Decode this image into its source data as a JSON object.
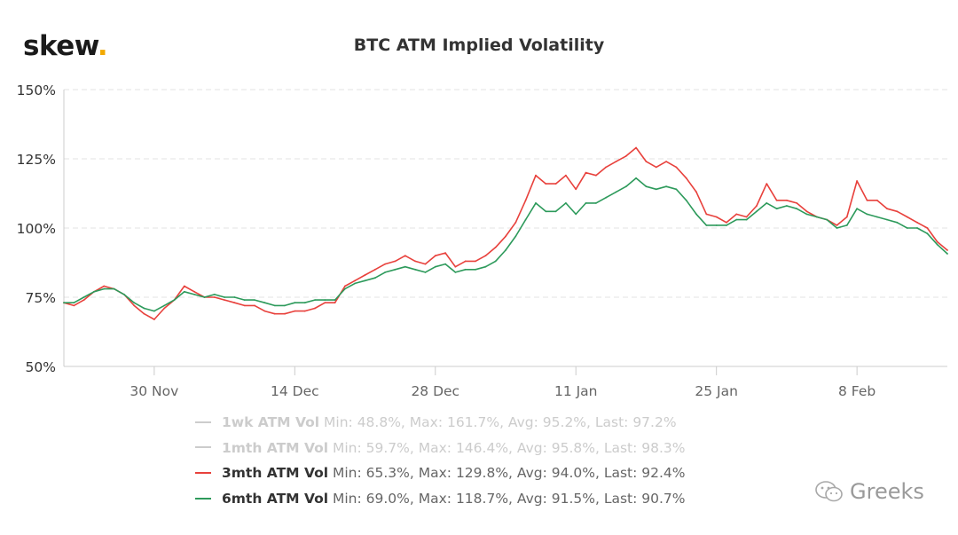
{
  "logo": {
    "text": "skew",
    "dot": "."
  },
  "watermark": {
    "text": "Greeks",
    "icon": "wechat-icon"
  },
  "chart_data": {
    "type": "line",
    "title": "BTC ATM Implied Volatility",
    "xlabel": "",
    "ylabel": "",
    "x_start": "2019-11-21",
    "x_end": "2020-02-17",
    "x_ticks": [
      "30 Nov",
      "14 Dec",
      "28 Dec",
      "11 Jan",
      "25 Jan",
      "8 Feb"
    ],
    "x_tick_dates": [
      "2019-11-30",
      "2019-12-14",
      "2019-12-28",
      "2020-01-11",
      "2020-01-25",
      "2020-02-08"
    ],
    "ylim": [
      50,
      150
    ],
    "y_ticks": [
      "50%",
      "75%",
      "100%",
      "125%",
      "150%"
    ],
    "y_tick_values": [
      50,
      75,
      100,
      125,
      150
    ],
    "grid": "horizontal dashed",
    "legend_position": "bottom",
    "series": [
      {
        "name": "1wk ATM Vol",
        "stats": "Min: 48.8%, Max: 161.7%, Avg: 95.2%, Last: 97.2%",
        "color": "#cccccc",
        "visible": false,
        "points": []
      },
      {
        "name": "1mth ATM Vol",
        "stats": "Min: 59.7%, Max: 146.4%, Avg: 95.8%, Last: 98.3%",
        "color": "#cccccc",
        "visible": false,
        "points": []
      },
      {
        "name": "3mth ATM Vol",
        "stats": "Min: 65.3%, Max: 129.8%, Avg: 94.0%, Last: 92.4%",
        "color": "#e8413c",
        "visible": true,
        "points": [
          [
            "2019-11-21",
            73
          ],
          [
            "2019-11-22",
            72
          ],
          [
            "2019-11-23",
            74
          ],
          [
            "2019-11-24",
            77
          ],
          [
            "2019-11-25",
            79
          ],
          [
            "2019-11-26",
            78
          ],
          [
            "2019-11-27",
            76
          ],
          [
            "2019-11-28",
            72
          ],
          [
            "2019-11-29",
            69
          ],
          [
            "2019-11-30",
            67
          ],
          [
            "2019-12-01",
            71
          ],
          [
            "2019-12-02",
            74
          ],
          [
            "2019-12-03",
            79
          ],
          [
            "2019-12-04",
            77
          ],
          [
            "2019-12-05",
            75
          ],
          [
            "2019-12-06",
            75
          ],
          [
            "2019-12-07",
            74
          ],
          [
            "2019-12-08",
            73
          ],
          [
            "2019-12-09",
            72
          ],
          [
            "2019-12-10",
            72
          ],
          [
            "2019-12-11",
            70
          ],
          [
            "2019-12-12",
            69
          ],
          [
            "2019-12-13",
            69
          ],
          [
            "2019-12-14",
            70
          ],
          [
            "2019-12-15",
            70
          ],
          [
            "2019-12-16",
            71
          ],
          [
            "2019-12-17",
            73
          ],
          [
            "2019-12-18",
            73
          ],
          [
            "2019-12-19",
            79
          ],
          [
            "2019-12-20",
            81
          ],
          [
            "2019-12-21",
            83
          ],
          [
            "2019-12-22",
            85
          ],
          [
            "2019-12-23",
            87
          ],
          [
            "2019-12-24",
            88
          ],
          [
            "2019-12-25",
            90
          ],
          [
            "2019-12-26",
            88
          ],
          [
            "2019-12-27",
            87
          ],
          [
            "2019-12-28",
            90
          ],
          [
            "2019-12-29",
            91
          ],
          [
            "2019-12-30",
            86
          ],
          [
            "2019-12-31",
            88
          ],
          [
            "2020-01-01",
            88
          ],
          [
            "2020-01-02",
            90
          ],
          [
            "2020-01-03",
            93
          ],
          [
            "2020-01-04",
            97
          ],
          [
            "2020-01-05",
            102
          ],
          [
            "2020-01-06",
            110
          ],
          [
            "2020-01-07",
            119
          ],
          [
            "2020-01-08",
            116
          ],
          [
            "2020-01-09",
            116
          ],
          [
            "2020-01-10",
            119
          ],
          [
            "2020-01-11",
            114
          ],
          [
            "2020-01-12",
            120
          ],
          [
            "2020-01-13",
            119
          ],
          [
            "2020-01-14",
            122
          ],
          [
            "2020-01-15",
            124
          ],
          [
            "2020-01-16",
            126
          ],
          [
            "2020-01-17",
            129
          ],
          [
            "2020-01-18",
            124
          ],
          [
            "2020-01-19",
            122
          ],
          [
            "2020-01-20",
            124
          ],
          [
            "2020-01-21",
            122
          ],
          [
            "2020-01-22",
            118
          ],
          [
            "2020-01-23",
            113
          ],
          [
            "2020-01-24",
            105
          ],
          [
            "2020-01-25",
            104
          ],
          [
            "2020-01-26",
            102
          ],
          [
            "2020-01-27",
            105
          ],
          [
            "2020-01-28",
            104
          ],
          [
            "2020-01-29",
            108
          ],
          [
            "2020-01-30",
            116
          ],
          [
            "2020-01-31",
            110
          ],
          [
            "2020-02-01",
            110
          ],
          [
            "2020-02-02",
            109
          ],
          [
            "2020-02-03",
            106
          ],
          [
            "2020-02-04",
            104
          ],
          [
            "2020-02-05",
            103
          ],
          [
            "2020-02-06",
            101
          ],
          [
            "2020-02-07",
            104
          ],
          [
            "2020-02-08",
            117
          ],
          [
            "2020-02-09",
            110
          ],
          [
            "2020-02-10",
            110
          ],
          [
            "2020-02-11",
            107
          ],
          [
            "2020-02-12",
            106
          ],
          [
            "2020-02-13",
            104
          ],
          [
            "2020-02-14",
            102
          ],
          [
            "2020-02-15",
            100
          ],
          [
            "2020-02-16",
            95
          ],
          [
            "2020-02-17",
            92
          ]
        ]
      },
      {
        "name": "6mth ATM Vol",
        "stats": "Min: 69.0%, Max: 118.7%, Avg: 91.5%, Last: 90.7%",
        "color": "#2d9a5b",
        "visible": true,
        "points": [
          [
            "2019-11-21",
            73
          ],
          [
            "2019-11-22",
            73
          ],
          [
            "2019-11-23",
            75
          ],
          [
            "2019-11-24",
            77
          ],
          [
            "2019-11-25",
            78
          ],
          [
            "2019-11-26",
            78
          ],
          [
            "2019-11-27",
            76
          ],
          [
            "2019-11-28",
            73
          ],
          [
            "2019-11-29",
            71
          ],
          [
            "2019-11-30",
            70
          ],
          [
            "2019-12-01",
            72
          ],
          [
            "2019-12-02",
            74
          ],
          [
            "2019-12-03",
            77
          ],
          [
            "2019-12-04",
            76
          ],
          [
            "2019-12-05",
            75
          ],
          [
            "2019-12-06",
            76
          ],
          [
            "2019-12-07",
            75
          ],
          [
            "2019-12-08",
            75
          ],
          [
            "2019-12-09",
            74
          ],
          [
            "2019-12-10",
            74
          ],
          [
            "2019-12-11",
            73
          ],
          [
            "2019-12-12",
            72
          ],
          [
            "2019-12-13",
            72
          ],
          [
            "2019-12-14",
            73
          ],
          [
            "2019-12-15",
            73
          ],
          [
            "2019-12-16",
            74
          ],
          [
            "2019-12-17",
            74
          ],
          [
            "2019-12-18",
            74
          ],
          [
            "2019-12-19",
            78
          ],
          [
            "2019-12-20",
            80
          ],
          [
            "2019-12-21",
            81
          ],
          [
            "2019-12-22",
            82
          ],
          [
            "2019-12-23",
            84
          ],
          [
            "2019-12-24",
            85
          ],
          [
            "2019-12-25",
            86
          ],
          [
            "2019-12-26",
            85
          ],
          [
            "2019-12-27",
            84
          ],
          [
            "2019-12-28",
            86
          ],
          [
            "2019-12-29",
            87
          ],
          [
            "2019-12-30",
            84
          ],
          [
            "2019-12-31",
            85
          ],
          [
            "2020-01-01",
            85
          ],
          [
            "2020-01-02",
            86
          ],
          [
            "2020-01-03",
            88
          ],
          [
            "2020-01-04",
            92
          ],
          [
            "2020-01-05",
            97
          ],
          [
            "2020-01-06",
            103
          ],
          [
            "2020-01-07",
            109
          ],
          [
            "2020-01-08",
            106
          ],
          [
            "2020-01-09",
            106
          ],
          [
            "2020-01-10",
            109
          ],
          [
            "2020-01-11",
            105
          ],
          [
            "2020-01-12",
            109
          ],
          [
            "2020-01-13",
            109
          ],
          [
            "2020-01-14",
            111
          ],
          [
            "2020-01-15",
            113
          ],
          [
            "2020-01-16",
            115
          ],
          [
            "2020-01-17",
            118
          ],
          [
            "2020-01-18",
            115
          ],
          [
            "2020-01-19",
            114
          ],
          [
            "2020-01-20",
            115
          ],
          [
            "2020-01-21",
            114
          ],
          [
            "2020-01-22",
            110
          ],
          [
            "2020-01-23",
            105
          ],
          [
            "2020-01-24",
            101
          ],
          [
            "2020-01-25",
            101
          ],
          [
            "2020-01-26",
            101
          ],
          [
            "2020-01-27",
            103
          ],
          [
            "2020-01-28",
            103
          ],
          [
            "2020-01-29",
            106
          ],
          [
            "2020-01-30",
            109
          ],
          [
            "2020-01-31",
            107
          ],
          [
            "2020-02-01",
            108
          ],
          [
            "2020-02-02",
            107
          ],
          [
            "2020-02-03",
            105
          ],
          [
            "2020-02-04",
            104
          ],
          [
            "2020-02-05",
            103
          ],
          [
            "2020-02-06",
            100
          ],
          [
            "2020-02-07",
            101
          ],
          [
            "2020-02-08",
            107
          ],
          [
            "2020-02-09",
            105
          ],
          [
            "2020-02-10",
            104
          ],
          [
            "2020-02-11",
            103
          ],
          [
            "2020-02-12",
            102
          ],
          [
            "2020-02-13",
            100
          ],
          [
            "2020-02-14",
            100
          ],
          [
            "2020-02-15",
            98
          ],
          [
            "2020-02-16",
            94
          ],
          [
            "2020-02-17",
            90.7
          ]
        ]
      }
    ]
  }
}
